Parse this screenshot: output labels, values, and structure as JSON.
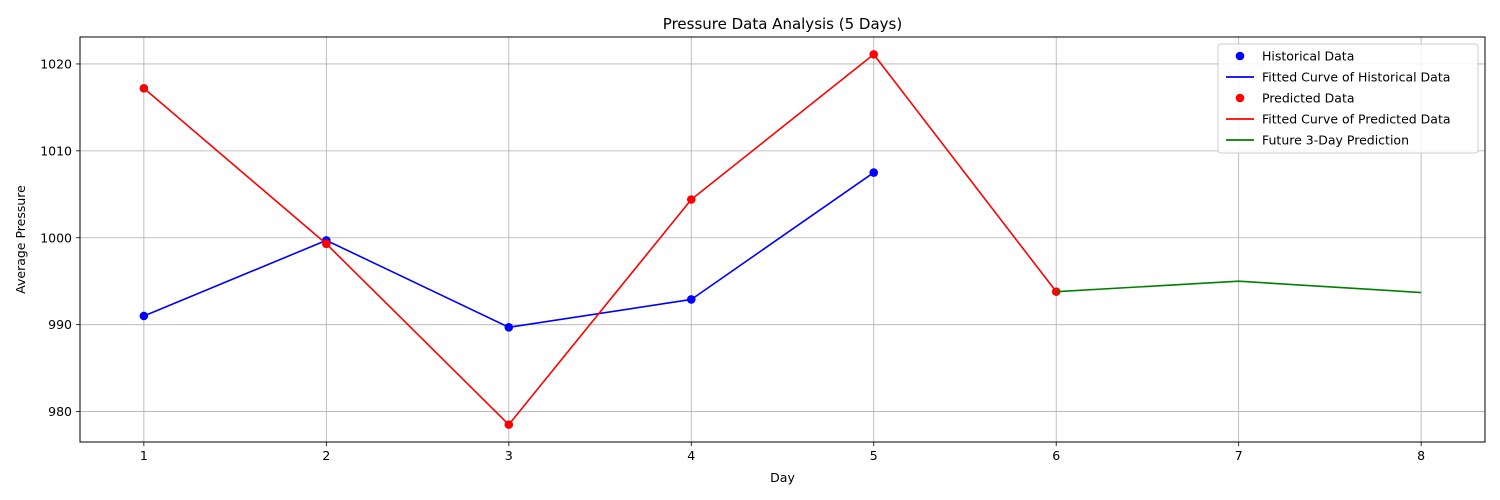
{
  "chart_data": {
    "type": "line",
    "title": "Pressure Data Analysis (5 Days)",
    "xlabel": "Day",
    "ylabel": "Average Pressure",
    "xlim": [
      0.65,
      8.35
    ],
    "ylim": [
      976.5,
      1023.1
    ],
    "xticks": [
      1,
      2,
      3,
      4,
      5,
      6,
      7,
      8
    ],
    "yticks": [
      980,
      990,
      1000,
      1010,
      1020
    ],
    "grid": true,
    "legend_position": "top-right",
    "series": [
      {
        "name": "Historical Data",
        "kind": "markers",
        "color": "#0000ff",
        "x": [
          1,
          2,
          3,
          4,
          5
        ],
        "y": [
          991.0,
          999.7,
          989.7,
          992.9,
          1007.5
        ]
      },
      {
        "name": "Fitted Curve of Historical Data",
        "kind": "line",
        "color": "#0000ff",
        "x": [
          1,
          2,
          3,
          4,
          5
        ],
        "y": [
          991.0,
          999.7,
          989.7,
          992.9,
          1007.5
        ]
      },
      {
        "name": "Predicted Data",
        "kind": "markers",
        "color": "#ff0000",
        "x": [
          1,
          2,
          3,
          4,
          5,
          6
        ],
        "y": [
          1017.2,
          999.3,
          978.5,
          1004.4,
          1021.1,
          993.8
        ]
      },
      {
        "name": "Fitted Curve of Predicted Data",
        "kind": "line",
        "color": "#ff0000",
        "x": [
          1,
          2,
          3,
          4,
          5,
          6
        ],
        "y": [
          1017.2,
          999.3,
          978.5,
          1004.4,
          1021.1,
          993.8
        ]
      },
      {
        "name": "Future 3-Day Prediction",
        "kind": "line",
        "color": "#008000",
        "x": [
          6,
          7,
          8
        ],
        "y": [
          993.8,
          995.0,
          993.7
        ]
      }
    ]
  }
}
